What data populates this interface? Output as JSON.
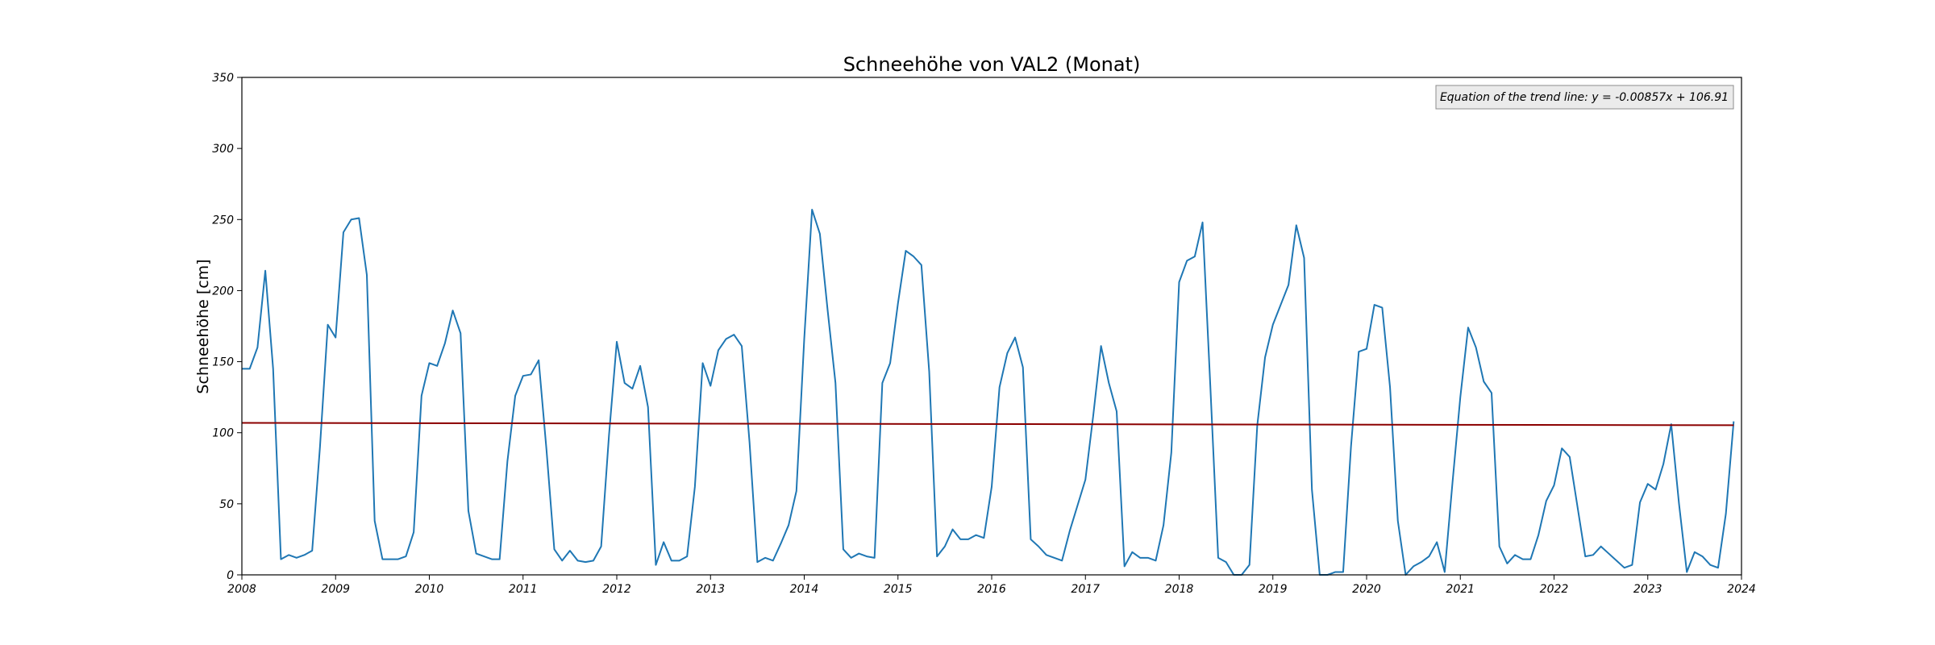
{
  "chart_data": {
    "type": "line",
    "title": "Schneehöhe von VAL2 (Monat)",
    "xlabel": "",
    "ylabel": "Schneehöhe [cm]",
    "xlim": [
      2008,
      2024
    ],
    "ylim": [
      0,
      350
    ],
    "x_ticks": [
      "2008",
      "2009",
      "2010",
      "2011",
      "2012",
      "2013",
      "2014",
      "2015",
      "2016",
      "2017",
      "2018",
      "2019",
      "2020",
      "2021",
      "2022",
      "2023",
      "2024"
    ],
    "y_ticks": [
      "0",
      "50",
      "100",
      "150",
      "200",
      "250",
      "300",
      "350"
    ],
    "grid": false,
    "series": [
      {
        "color": "#1f77b4",
        "start_year": 2008,
        "values": [
          145,
          145,
          160,
          214,
          145,
          11,
          14,
          12,
          14,
          17,
          90,
          176,
          167,
          241,
          250,
          251,
          211,
          38,
          11,
          11,
          11,
          13,
          30,
          126,
          149,
          147,
          163,
          186,
          170,
          45,
          15,
          13,
          11,
          11,
          80,
          126,
          140,
          141,
          151,
          88,
          18,
          10,
          17,
          10,
          9,
          10,
          20,
          98,
          164,
          135,
          131,
          147,
          118,
          7,
          23,
          10,
          10,
          13,
          62,
          149,
          133,
          158,
          166,
          169,
          161,
          93,
          9,
          12,
          10,
          22,
          35,
          59,
          166,
          257,
          240,
          186,
          135,
          18,
          12,
          15,
          13,
          12,
          135,
          149,
          191,
          228,
          224,
          218,
          143,
          13,
          20,
          32,
          25,
          25,
          28,
          26,
          62,
          132,
          156,
          167,
          146,
          25,
          20,
          14,
          12,
          10,
          31,
          49,
          67,
          112,
          161,
          135,
          115,
          6,
          16,
          12,
          12,
          10,
          35,
          86,
          206,
          221,
          224,
          248,
          132,
          12,
          9,
          0,
          0,
          7,
          105,
          153,
          176,
          190,
          204,
          246,
          223,
          60,
          0,
          0,
          2,
          2,
          90,
          157,
          159,
          190,
          188,
          132,
          38,
          0,
          6,
          9,
          13,
          23,
          2,
          65,
          125,
          174,
          160,
          136,
          128,
          20,
          8,
          14,
          11,
          11,
          28,
          52,
          63,
          89,
          83,
          48,
          13,
          14,
          20,
          15,
          10,
          5,
          7,
          51,
          64,
          60,
          78,
          106,
          50,
          2,
          16,
          13,
          7,
          5,
          43,
          108
        ]
      }
    ],
    "trend_line": {
      "color": "#8b0000",
      "slope": -0.00857,
      "intercept": 106.91
    },
    "legend": {
      "text": "Equation of the trend line: y = -0.00857x + 106.91",
      "position": "top-right"
    }
  }
}
